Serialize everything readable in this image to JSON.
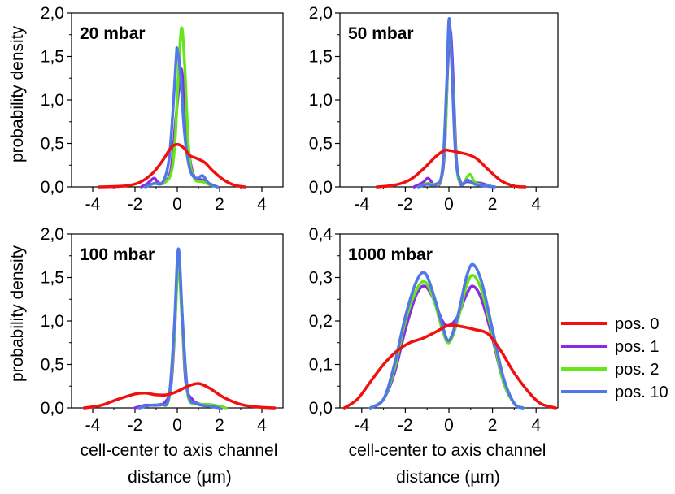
{
  "series_colors": {
    "pos. 0": "#f01010",
    "pos. 1": "#8a2be2",
    "pos. 2": "#66e61a",
    "pos. 10": "#5078e6"
  },
  "legend": [
    "pos. 0",
    "pos. 1",
    "pos. 2",
    "pos. 10"
  ],
  "axis_titles": {
    "ylabel_top": "probability density",
    "ylabel_bottom": "probability density",
    "xlabel_left_line1": "cell-center to axis channel",
    "xlabel_left_line2": "distance (µm)",
    "xlabel_right_line1": "cell-center to axis channel",
    "xlabel_right_line2": "distance (µm)"
  },
  "chart_data": [
    {
      "type": "line",
      "title": "20 mbar",
      "xlabel": "",
      "ylabel": "probability density",
      "xlim": [
        -5,
        5
      ],
      "ylim": [
        0,
        2.0
      ],
      "xticks": [
        -4,
        -2,
        0,
        2,
        4
      ],
      "yticks": [
        0,
        0.5,
        1.0,
        1.5,
        2.0
      ],
      "ytick_labels": [
        "0,0",
        "0,5",
        "1,0",
        "1,5",
        "2,0"
      ],
      "series": [
        {
          "name": "pos. 0",
          "points": [
            [
              -3.7,
              0
            ],
            [
              -2.5,
              0.01
            ],
            [
              -1.8,
              0.05
            ],
            [
              -1.2,
              0.15
            ],
            [
              -0.7,
              0.3
            ],
            [
              -0.3,
              0.45
            ],
            [
              0,
              0.49
            ],
            [
              0.3,
              0.45
            ],
            [
              0.6,
              0.36
            ],
            [
              0.9,
              0.33
            ],
            [
              1.3,
              0.28
            ],
            [
              1.7,
              0.18
            ],
            [
              2.2,
              0.08
            ],
            [
              2.7,
              0.02
            ],
            [
              3.2,
              0
            ]
          ]
        },
        {
          "name": "pos. 1",
          "points": [
            [
              -1.7,
              0
            ],
            [
              -1.4,
              0.04
            ],
            [
              -1.1,
              0.1
            ],
            [
              -0.9,
              0.05
            ],
            [
              -0.6,
              0.05
            ],
            [
              -0.3,
              0.2
            ],
            [
              -0.1,
              0.7
            ],
            [
              0.1,
              1.2
            ],
            [
              0.2,
              1.35
            ],
            [
              0.35,
              1.0
            ],
            [
              0.55,
              0.4
            ],
            [
              0.8,
              0.12
            ],
            [
              1.2,
              0.08
            ],
            [
              1.5,
              0.04
            ],
            [
              1.9,
              0
            ]
          ]
        },
        {
          "name": "pos. 2",
          "points": [
            [
              -1.5,
              0
            ],
            [
              -1.1,
              0.04
            ],
            [
              -0.7,
              0.04
            ],
            [
              -0.3,
              0.15
            ],
            [
              -0.1,
              0.55
            ],
            [
              0.05,
              1.3
            ],
            [
              0.2,
              1.83
            ],
            [
              0.35,
              1.4
            ],
            [
              0.55,
              0.4
            ],
            [
              0.8,
              0.1
            ],
            [
              1.2,
              0.06
            ],
            [
              1.6,
              0.02
            ],
            [
              1.9,
              0
            ]
          ]
        },
        {
          "name": "pos. 10",
          "points": [
            [
              -1.5,
              0
            ],
            [
              -1.1,
              0.04
            ],
            [
              -0.7,
              0.05
            ],
            [
              -0.4,
              0.3
            ],
            [
              -0.2,
              0.9
            ],
            [
              -0.05,
              1.5
            ],
            [
              0,
              1.58
            ],
            [
              0.15,
              1.3
            ],
            [
              0.35,
              0.6
            ],
            [
              0.6,
              0.2
            ],
            [
              0.9,
              0.1
            ],
            [
              1.2,
              0.13
            ],
            [
              1.5,
              0.04
            ],
            [
              1.9,
              0
            ]
          ]
        }
      ]
    },
    {
      "type": "line",
      "title": "50 mbar",
      "xlabel": "",
      "ylabel": "",
      "xlim": [
        -5,
        5
      ],
      "ylim": [
        0,
        2.0
      ],
      "xticks": [
        -4,
        -2,
        0,
        2,
        4
      ],
      "yticks": [
        0,
        0.5,
        1.0,
        1.5,
        2.0
      ],
      "ytick_labels": [
        "0,0",
        "0,5",
        "1,0",
        "1,5",
        "2,0"
      ],
      "series": [
        {
          "name": "pos. 0",
          "points": [
            [
              -3.3,
              0
            ],
            [
              -2.5,
              0.02
            ],
            [
              -1.8,
              0.08
            ],
            [
              -1.2,
              0.2
            ],
            [
              -0.6,
              0.35
            ],
            [
              -0.2,
              0.42
            ],
            [
              0,
              0.42
            ],
            [
              0.4,
              0.4
            ],
            [
              0.9,
              0.37
            ],
            [
              1.3,
              0.32
            ],
            [
              1.8,
              0.2
            ],
            [
              2.4,
              0.07
            ],
            [
              3.0,
              0.01
            ],
            [
              3.5,
              0
            ]
          ]
        },
        {
          "name": "pos. 1",
          "points": [
            [
              -1.6,
              0
            ],
            [
              -1.2,
              0.05
            ],
            [
              -0.95,
              0.1
            ],
            [
              -0.7,
              0.03
            ],
            [
              -0.4,
              0.05
            ],
            [
              -0.2,
              0.4
            ],
            [
              -0.05,
              1.4
            ],
            [
              0.05,
              1.8
            ],
            [
              0.15,
              1.5
            ],
            [
              0.35,
              0.3
            ],
            [
              0.55,
              0.03
            ],
            [
              0.8,
              0.06
            ],
            [
              1.1,
              0.05
            ],
            [
              1.5,
              0.04
            ],
            [
              2.0,
              0
            ]
          ]
        },
        {
          "name": "pos. 2",
          "points": [
            [
              -1.4,
              0
            ],
            [
              -1.0,
              0.04
            ],
            [
              -0.7,
              0.03
            ],
            [
              -0.35,
              0.1
            ],
            [
              -0.15,
              0.7
            ],
            [
              0,
              1.85
            ],
            [
              0.15,
              1.3
            ],
            [
              0.35,
              0.25
            ],
            [
              0.6,
              0.03
            ],
            [
              0.85,
              0.12
            ],
            [
              1.0,
              0.14
            ],
            [
              1.2,
              0.05
            ],
            [
              1.6,
              0.02
            ],
            [
              2.1,
              0
            ]
          ]
        },
        {
          "name": "pos. 10",
          "points": [
            [
              -1.4,
              0
            ],
            [
              -1.0,
              0.03
            ],
            [
              -0.6,
              0.03
            ],
            [
              -0.3,
              0.2
            ],
            [
              -0.1,
              1.2
            ],
            [
              0,
              1.92
            ],
            [
              0.1,
              1.6
            ],
            [
              0.3,
              0.4
            ],
            [
              0.55,
              0.05
            ],
            [
              0.85,
              0.08
            ],
            [
              1.2,
              0.03
            ],
            [
              1.7,
              0.01
            ],
            [
              2.1,
              0
            ]
          ]
        }
      ]
    },
    {
      "type": "line",
      "title": "100 mbar",
      "xlabel": "cell-center to axis channel distance (µm)",
      "ylabel": "probability density",
      "xlim": [
        -5,
        5
      ],
      "ylim": [
        0,
        2.0
      ],
      "xticks": [
        -4,
        -2,
        0,
        2,
        4
      ],
      "yticks": [
        0,
        0.5,
        1.0,
        1.5,
        2.0
      ],
      "ytick_labels": [
        "0,0",
        "0,5",
        "1,0",
        "1,5",
        "2,0"
      ],
      "series": [
        {
          "name": "pos. 0",
          "points": [
            [
              -4.4,
              0
            ],
            [
              -3.6,
              0.03
            ],
            [
              -2.8,
              0.1
            ],
            [
              -2.0,
              0.16
            ],
            [
              -1.5,
              0.17
            ],
            [
              -1.0,
              0.15
            ],
            [
              -0.5,
              0.15
            ],
            [
              0,
              0.19
            ],
            [
              0.5,
              0.25
            ],
            [
              1.0,
              0.28
            ],
            [
              1.5,
              0.23
            ],
            [
              2.2,
              0.12
            ],
            [
              3.0,
              0.04
            ],
            [
              3.8,
              0.01
            ],
            [
              4.6,
              0
            ]
          ]
        },
        {
          "name": "pos. 1",
          "points": [
            [
              -2.0,
              0
            ],
            [
              -1.5,
              0.03
            ],
            [
              -1.0,
              0.03
            ],
            [
              -0.6,
              0.06
            ],
            [
              -0.3,
              0.25
            ],
            [
              -0.1,
              1.0
            ],
            [
              0.05,
              1.78
            ],
            [
              0.2,
              1.2
            ],
            [
              0.4,
              0.3
            ],
            [
              0.7,
              0.1
            ],
            [
              1.1,
              0.04
            ],
            [
              1.6,
              0.02
            ],
            [
              2.1,
              0
            ]
          ]
        },
        {
          "name": "pos. 2",
          "points": [
            [
              -1.8,
              0
            ],
            [
              -1.3,
              0.03
            ],
            [
              -0.8,
              0.04
            ],
            [
              -0.4,
              0.1
            ],
            [
              -0.15,
              0.8
            ],
            [
              0.05,
              1.65
            ],
            [
              0.25,
              0.9
            ],
            [
              0.5,
              0.15
            ],
            [
              0.9,
              0.05
            ],
            [
              1.5,
              0.04
            ],
            [
              2.0,
              0.02
            ],
            [
              2.3,
              0
            ]
          ]
        },
        {
          "name": "pos. 10",
          "points": [
            [
              -1.8,
              0
            ],
            [
              -1.3,
              0.03
            ],
            [
              -0.8,
              0.04
            ],
            [
              -0.4,
              0.12
            ],
            [
              -0.15,
              0.9
            ],
            [
              0.05,
              1.83
            ],
            [
              0.25,
              1.0
            ],
            [
              0.5,
              0.18
            ],
            [
              0.9,
              0.05
            ],
            [
              1.5,
              0.02
            ],
            [
              2.0,
              0
            ]
          ]
        }
      ]
    },
    {
      "type": "line",
      "title": "1000 mbar",
      "xlabel": "cell-center to axis channel distance (µm)",
      "ylabel": "",
      "xlim": [
        -5,
        5
      ],
      "ylim": [
        0,
        0.4
      ],
      "xticks": [
        -4,
        -2,
        0,
        2,
        4
      ],
      "yticks": [
        0,
        0.1,
        0.2,
        0.3,
        0.4
      ],
      "ytick_labels": [
        "0,0",
        "0,1",
        "0,2",
        "0,3",
        "0,4"
      ],
      "series": [
        {
          "name": "pos. 0",
          "points": [
            [
              -4.8,
              0
            ],
            [
              -4.2,
              0.02
            ],
            [
              -3.6,
              0.06
            ],
            [
              -3.0,
              0.1
            ],
            [
              -2.4,
              0.13
            ],
            [
              -1.8,
              0.15
            ],
            [
              -1.2,
              0.16
            ],
            [
              -0.6,
              0.175
            ],
            [
              0,
              0.19
            ],
            [
              0.6,
              0.187
            ],
            [
              1.2,
              0.18
            ],
            [
              1.8,
              0.17
            ],
            [
              2.4,
              0.13
            ],
            [
              3.0,
              0.08
            ],
            [
              3.6,
              0.04
            ],
            [
              4.2,
              0.01
            ],
            [
              4.9,
              0
            ]
          ]
        },
        {
          "name": "pos. 1",
          "points": [
            [
              -3.6,
              0
            ],
            [
              -3.0,
              0.02
            ],
            [
              -2.5,
              0.08
            ],
            [
              -2.0,
              0.18
            ],
            [
              -1.5,
              0.26
            ],
            [
              -1.1,
              0.28
            ],
            [
              -0.7,
              0.25
            ],
            [
              -0.3,
              0.2
            ],
            [
              0,
              0.19
            ],
            [
              0.4,
              0.21
            ],
            [
              0.8,
              0.26
            ],
            [
              1.1,
              0.28
            ],
            [
              1.5,
              0.25
            ],
            [
              2.0,
              0.16
            ],
            [
              2.5,
              0.06
            ],
            [
              3.0,
              0.01
            ],
            [
              3.4,
              0
            ]
          ]
        },
        {
          "name": "pos. 2",
          "points": [
            [
              -3.6,
              0
            ],
            [
              -3.0,
              0.02
            ],
            [
              -2.5,
              0.09
            ],
            [
              -2.0,
              0.2
            ],
            [
              -1.5,
              0.27
            ],
            [
              -1.1,
              0.29
            ],
            [
              -0.7,
              0.25
            ],
            [
              -0.3,
              0.18
            ],
            [
              0,
              0.15
            ],
            [
              0.4,
              0.2
            ],
            [
              0.8,
              0.28
            ],
            [
              1.1,
              0.305
            ],
            [
              1.5,
              0.27
            ],
            [
              2.0,
              0.17
            ],
            [
              2.5,
              0.06
            ],
            [
              3.0,
              0.01
            ],
            [
              3.4,
              0
            ]
          ]
        },
        {
          "name": "pos. 10",
          "points": [
            [
              -3.6,
              0
            ],
            [
              -3.0,
              0.02
            ],
            [
              -2.5,
              0.1
            ],
            [
              -2.0,
              0.21
            ],
            [
              -1.5,
              0.29
            ],
            [
              -1.1,
              0.31
            ],
            [
              -0.7,
              0.26
            ],
            [
              -0.3,
              0.19
            ],
            [
              0,
              0.155
            ],
            [
              0.4,
              0.21
            ],
            [
              0.8,
              0.3
            ],
            [
              1.1,
              0.33
            ],
            [
              1.5,
              0.29
            ],
            [
              2.0,
              0.18
            ],
            [
              2.5,
              0.07
            ],
            [
              3.0,
              0.01
            ],
            [
              3.4,
              0
            ]
          ]
        }
      ]
    }
  ]
}
